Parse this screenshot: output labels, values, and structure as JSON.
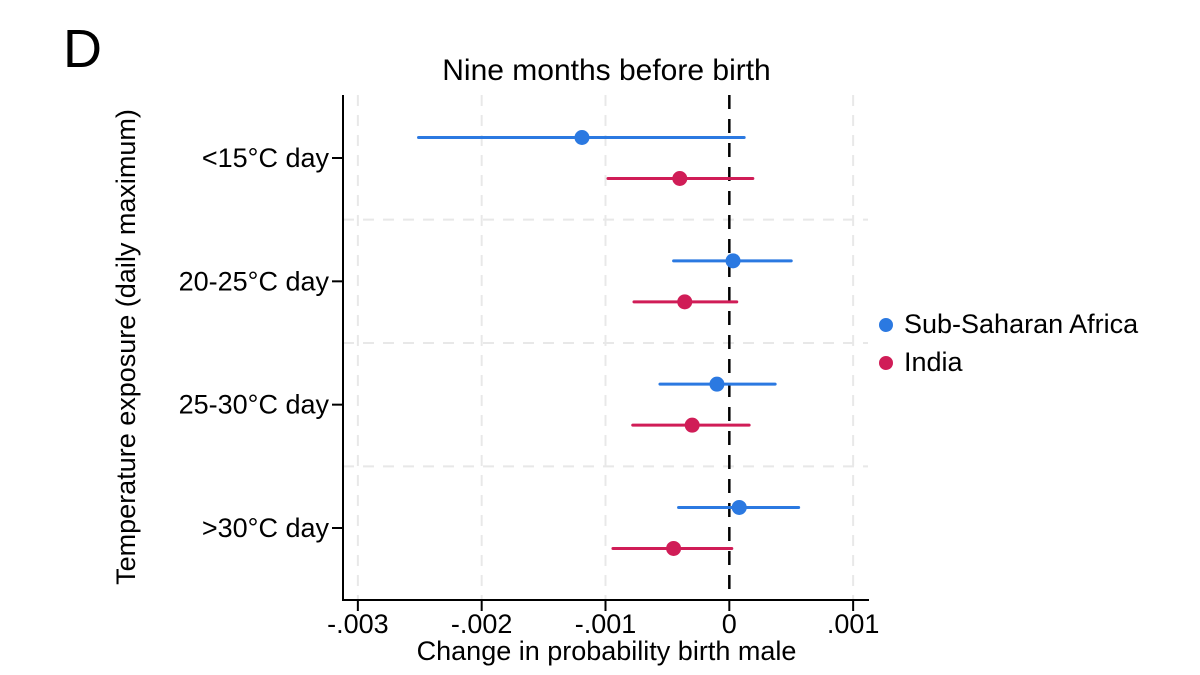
{
  "panel_label": "D",
  "chart_data": {
    "type": "scatter",
    "subtype": "coefficient-plot-with-confidence-intervals",
    "title": "Nine months before birth",
    "xlabel": "Change in probability birth male",
    "ylabel": "Temperature exposure (daily maximum)",
    "categories": [
      "<15°C day",
      "20-25°C day",
      "25-30°C day",
      ">30°C day"
    ],
    "x_ticks": [
      {
        "value": -0.003,
        "label": "-.003"
      },
      {
        "value": -0.002,
        "label": "-.002"
      },
      {
        "value": -0.001,
        "label": "-.001"
      },
      {
        "value": 0,
        "label": "0"
      },
      {
        "value": 0.001,
        "label": ".001"
      }
    ],
    "xlim": [
      -0.00312,
      0.00112
    ],
    "zero_line": 0,
    "grid": true,
    "legend_position": "right",
    "series": [
      {
        "name": "Sub-Saharan Africa",
        "color": "#2b79e1",
        "values": [
          {
            "lo": -0.00251,
            "est": -0.00119,
            "hi": 0.00012
          },
          {
            "lo": -0.00045,
            "est": 3e-05,
            "hi": 0.0005
          },
          {
            "lo": -0.00056,
            "est": -0.0001,
            "hi": 0.00037
          },
          {
            "lo": -0.00041,
            "est": 8e-05,
            "hi": 0.00056
          }
        ]
      },
      {
        "name": "India",
        "color": "#d01d57",
        "values": [
          {
            "lo": -0.00098,
            "est": -0.0004,
            "hi": 0.00019
          },
          {
            "lo": -0.00077,
            "est": -0.00036,
            "hi": 6e-05
          },
          {
            "lo": -0.00078,
            "est": -0.0003,
            "hi": 0.00016
          },
          {
            "lo": -0.00094,
            "est": -0.00045,
            "hi": 2e-05
          }
        ]
      }
    ],
    "colors": {
      "axis": "#000000",
      "zero_line": "#000000",
      "gridline": "#e8e8e8"
    }
  }
}
